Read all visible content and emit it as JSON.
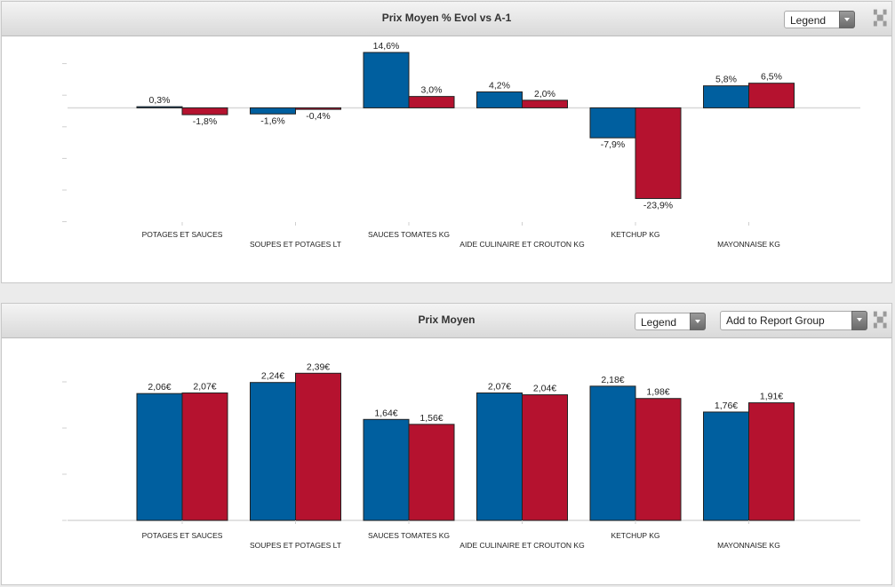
{
  "panels": {
    "evol": {
      "title": "Prix Moyen % Evol vs A-1",
      "legend_label": "Legend"
    },
    "prix": {
      "title": "Prix Moyen",
      "legend_label": "Legend",
      "report_group_label": "Add to Report Group"
    }
  },
  "colors": {
    "series_a": "#005f9f",
    "series_b": "#b5122f"
  },
  "chart_data": [
    {
      "type": "bar",
      "categories": [
        "POTAGES ET SAUCES",
        "SOUPES ET POTAGES LT",
        "SAUCES TOMATES KG",
        "AIDE CULINAIRE ET CROUTON KG",
        "KETCHUP KG",
        "MAYONNAISE KG"
      ],
      "series": [
        {
          "values": [
            0.3,
            -1.6,
            14.6,
            4.2,
            -7.9,
            5.8
          ],
          "labels": [
            "0,3%",
            "-1,6%",
            "14,6%",
            "4,2%",
            "-7,9%",
            "5,8%"
          ]
        },
        {
          "values": [
            -1.8,
            -0.4,
            3.0,
            2.0,
            -23.9,
            6.5
          ],
          "labels": [
            "-1,8%",
            "-0,4%",
            "3,0%",
            "2,0%",
            "-23,9%",
            "6,5%"
          ]
        }
      ],
      "ylim": [
        -30,
        20
      ],
      "grid": false
    },
    {
      "type": "bar",
      "categories": [
        "POTAGES ET SAUCES",
        "SOUPES ET POTAGES LT",
        "SAUCES TOMATES KG",
        "AIDE CULINAIRE ET CROUTON KG",
        "KETCHUP KG",
        "MAYONNAISE KG"
      ],
      "series": [
        {
          "values": [
            2.06,
            2.24,
            1.64,
            2.07,
            2.18,
            1.76
          ],
          "labels": [
            "2,06€",
            "2,24€",
            "1,64€",
            "2,07€",
            "2,18€",
            "1,76€"
          ]
        },
        {
          "values": [
            2.07,
            2.39,
            1.56,
            2.04,
            1.98,
            1.91
          ],
          "labels": [
            "2,07€",
            "2,39€",
            "1,56€",
            "2,04€",
            "1,98€",
            "1,91€"
          ]
        }
      ],
      "ylim": [
        0,
        3
      ],
      "grid": false
    }
  ]
}
